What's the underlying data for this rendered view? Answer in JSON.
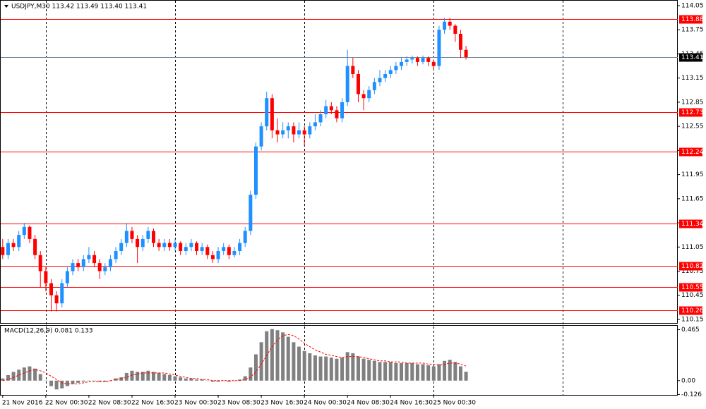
{
  "chart_data": [
    {
      "type": "candlestick",
      "title": "USDJPY,M30  113.42 113.49 113.40 113.41",
      "up_color": "#1e90ff",
      "down_color": "#ff0000",
      "xlim": [
        -0.5,
        125.3
      ],
      "xticks": [
        {
          "value": 0,
          "label": "21 Nov 2016"
        },
        {
          "value": 8,
          "label": "22 Nov 00:30"
        },
        {
          "value": 16,
          "label": "22 Nov 08:30"
        },
        {
          "value": 24,
          "label": "22 Nov 16:30"
        },
        {
          "value": 32,
          "label": "23 Nov 00:30"
        },
        {
          "value": 40,
          "label": "23 Nov 08:30"
        },
        {
          "value": 48,
          "label": "23 Nov 16:30"
        },
        {
          "value": 56,
          "label": "24 Nov 00:30"
        },
        {
          "value": 64,
          "label": "24 Nov 08:30"
        },
        {
          "value": 72,
          "label": "24 Nov 16:30"
        },
        {
          "value": 80,
          "label": "25 Nov 00:30"
        }
      ],
      "separators": [
        8,
        32,
        56,
        80,
        104
      ],
      "ylim": [
        110.106,
        114.12
      ],
      "yticks": [
        114.05,
        113.75,
        113.45,
        113.15,
        112.85,
        112.55,
        112.25,
        111.95,
        111.65,
        111.35,
        111.05,
        110.75,
        110.45,
        110.15
      ],
      "levels": [
        113.88,
        112.73,
        112.24,
        111.34,
        110.82,
        110.55,
        110.26
      ],
      "level_color": "#ff0000",
      "current": 113.41,
      "current_color": "#778899",
      "candles": [
        [
          111.05,
          111.15,
          110.9,
          110.95
        ],
        [
          110.95,
          111.15,
          110.9,
          111.1
        ],
        [
          111.1,
          111.15,
          111.0,
          111.05
        ],
        [
          111.05,
          111.25,
          111.0,
          111.2
        ],
        [
          111.2,
          111.35,
          111.15,
          111.3
        ],
        [
          111.3,
          111.32,
          111.1,
          111.15
        ],
        [
          111.15,
          111.2,
          110.9,
          110.95
        ],
        [
          110.95,
          111.0,
          110.55,
          110.75
        ],
        [
          110.75,
          110.8,
          110.5,
          110.6
        ],
        [
          110.6,
          110.65,
          110.25,
          110.45
        ],
        [
          110.45,
          110.5,
          110.25,
          110.35
        ],
        [
          110.35,
          110.65,
          110.3,
          110.6
        ],
        [
          110.6,
          110.8,
          110.55,
          110.75
        ],
        [
          110.75,
          110.9,
          110.7,
          110.85
        ],
        [
          110.85,
          110.9,
          110.75,
          110.8
        ],
        [
          110.8,
          110.95,
          110.75,
          110.9
        ],
        [
          110.9,
          111.05,
          110.85,
          110.95
        ],
        [
          110.95,
          111.0,
          110.8,
          110.85
        ],
        [
          110.85,
          110.9,
          110.65,
          110.75
        ],
        [
          110.75,
          110.85,
          110.7,
          110.8
        ],
        [
          110.8,
          110.95,
          110.75,
          110.9
        ],
        [
          110.9,
          111.05,
          110.85,
          111.0
        ],
        [
          111.0,
          111.15,
          110.95,
          111.1
        ],
        [
          111.1,
          111.35,
          111.05,
          111.25
        ],
        [
          111.25,
          111.3,
          111.1,
          111.15
        ],
        [
          111.15,
          111.2,
          110.85,
          111.05
        ],
        [
          111.05,
          111.2,
          111.0,
          111.15
        ],
        [
          111.15,
          111.3,
          111.1,
          111.25
        ],
        [
          111.25,
          111.28,
          111.05,
          111.1
        ],
        [
          111.1,
          111.15,
          111.0,
          111.05
        ],
        [
          111.05,
          111.15,
          111.0,
          111.1
        ],
        [
          111.1,
          111.15,
          111.0,
          111.05
        ],
        [
          111.05,
          111.15,
          111.0,
          111.1
        ],
        [
          111.1,
          111.12,
          110.95,
          111.0
        ],
        [
          111.0,
          111.1,
          110.95,
          111.05
        ],
        [
          111.05,
          111.15,
          111.0,
          111.1
        ],
        [
          111.1,
          111.12,
          110.95,
          111.0
        ],
        [
          111.0,
          111.1,
          110.95,
          111.05
        ],
        [
          111.05,
          111.08,
          110.9,
          110.95
        ],
        [
          110.95,
          111.0,
          110.85,
          110.9
        ],
        [
          110.9,
          111.05,
          110.85,
          111.0
        ],
        [
          111.0,
          111.1,
          110.95,
          111.05
        ],
        [
          111.05,
          111.08,
          110.9,
          110.95
        ],
        [
          110.95,
          111.05,
          110.92,
          111.0
        ],
        [
          111.0,
          111.15,
          110.95,
          111.1
        ],
        [
          111.1,
          111.3,
          111.05,
          111.25
        ],
        [
          111.25,
          111.75,
          111.2,
          111.7
        ],
        [
          111.7,
          112.35,
          111.65,
          112.3
        ],
        [
          112.3,
          112.6,
          112.25,
          112.55
        ],
        [
          112.55,
          112.98,
          112.5,
          112.9
        ],
        [
          112.9,
          112.95,
          112.4,
          112.5
        ],
        [
          112.5,
          112.65,
          112.35,
          112.45
        ],
        [
          112.45,
          112.6,
          112.4,
          112.5
        ],
        [
          112.5,
          112.6,
          112.4,
          112.55
        ],
        [
          112.55,
          112.6,
          112.35,
          112.45
        ],
        [
          112.45,
          112.6,
          112.4,
          112.5
        ],
        [
          112.5,
          112.55,
          112.3,
          112.45
        ],
        [
          112.45,
          112.6,
          112.4,
          112.55
        ],
        [
          112.55,
          112.7,
          112.5,
          112.6
        ],
        [
          112.6,
          112.75,
          112.55,
          112.7
        ],
        [
          112.7,
          112.88,
          112.65,
          112.8
        ],
        [
          112.8,
          112.85,
          112.7,
          112.75
        ],
        [
          112.75,
          112.8,
          112.6,
          112.65
        ],
        [
          112.65,
          112.9,
          112.6,
          112.85
        ],
        [
          112.85,
          113.5,
          112.8,
          113.3
        ],
        [
          113.3,
          113.4,
          113.15,
          113.2
        ],
        [
          113.2,
          113.25,
          112.85,
          112.95
        ],
        [
          112.95,
          113.0,
          112.75,
          112.9
        ],
        [
          112.9,
          113.05,
          112.85,
          113.0
        ],
        [
          113.0,
          113.15,
          112.95,
          113.1
        ],
        [
          113.1,
          113.25,
          113.05,
          113.15
        ],
        [
          113.15,
          113.25,
          113.1,
          113.2
        ],
        [
          113.2,
          113.3,
          113.15,
          113.25
        ],
        [
          113.25,
          113.35,
          113.2,
          113.3
        ],
        [
          113.3,
          113.4,
          113.25,
          113.35
        ],
        [
          113.35,
          113.42,
          113.3,
          113.38
        ],
        [
          113.38,
          113.43,
          113.33,
          113.4
        ],
        [
          113.4,
          113.42,
          113.3,
          113.35
        ],
        [
          113.35,
          113.43,
          113.32,
          113.4
        ],
        [
          113.4,
          113.42,
          113.3,
          113.35
        ],
        [
          113.35,
          113.38,
          113.25,
          113.3
        ],
        [
          113.3,
          113.8,
          113.25,
          113.75
        ],
        [
          113.75,
          113.9,
          113.7,
          113.85
        ],
        [
          113.85,
          113.9,
          113.75,
          113.8
        ],
        [
          113.8,
          113.82,
          113.6,
          113.7
        ],
        [
          113.7,
          113.75,
          113.4,
          113.5
        ],
        [
          113.5,
          113.55,
          113.38,
          113.41
        ]
      ]
    },
    {
      "type": "macd",
      "title": "MACD(12,26,9) 0.081 0.133",
      "ylim": [
        -0.13,
        0.5
      ],
      "yticks": [
        0.465,
        {
          "value": 0,
          "label": "0.00"
        },
        -0.126
      ],
      "series": [
        {
          "name": "MACD",
          "color": "#808080",
          "values": [
            0.02,
            0.05,
            0.08,
            0.1,
            0.12,
            0.13,
            0.11,
            0.06,
            0,
            -0.05,
            -0.08,
            -0.07,
            -0.05,
            -0.03,
            -0.02,
            -0.01,
            0,
            0,
            -0.01,
            -0.01,
            0,
            0.02,
            0.03,
            0.07,
            0.09,
            0.08,
            0.08,
            0.09,
            0.08,
            0.07,
            0.06,
            0.05,
            0.04,
            0.03,
            0.02,
            0.02,
            0.01,
            0.01,
            0,
            -0.01,
            -0.01,
            0,
            -0.01,
            0,
            0.01,
            0.04,
            0.12,
            0.24,
            0.35,
            0.45,
            0.47,
            0.46,
            0.44,
            0.4,
            0.35,
            0.31,
            0.27,
            0.25,
            0.23,
            0.22,
            0.22,
            0.21,
            0.2,
            0.21,
            0.26,
            0.25,
            0.22,
            0.2,
            0.19,
            0.18,
            0.17,
            0.17,
            0.17,
            0.16,
            0.16,
            0.16,
            0.16,
            0.15,
            0.15,
            0.14,
            0.13,
            0.15,
            0.18,
            0.19,
            0.17,
            0.13,
            0.081
          ]
        },
        {
          "name": "Signal",
          "color": "#ff0000",
          "values": [
            0,
            0.01,
            0.03,
            0.05,
            0.07,
            0.09,
            0.1,
            0.09,
            0.07,
            0.04,
            0.01,
            -0.02,
            -0.03,
            -0.03,
            -0.03,
            -0.02,
            -0.01,
            -0.01,
            -0.01,
            -0.01,
            0,
            0.01,
            0.02,
            0.03,
            0.05,
            0.06,
            0.07,
            0.07,
            0.07,
            0.07,
            0.07,
            0.06,
            0.05,
            0.04,
            0.03,
            0.02,
            0.02,
            0.01,
            0.01,
            0,
            0,
            0,
            0,
            0,
            0,
            0.01,
            0.03,
            0.08,
            0.15,
            0.23,
            0.31,
            0.37,
            0.41,
            0.42,
            0.41,
            0.38,
            0.34,
            0.31,
            0.28,
            0.26,
            0.24,
            0.23,
            0.22,
            0.21,
            0.22,
            0.22,
            0.22,
            0.21,
            0.2,
            0.19,
            0.18,
            0.18,
            0.17,
            0.17,
            0.17,
            0.16,
            0.16,
            0.16,
            0.16,
            0.15,
            0.15,
            0.14,
            0.15,
            0.16,
            0.16,
            0.15,
            0.133
          ]
        }
      ]
    }
  ]
}
